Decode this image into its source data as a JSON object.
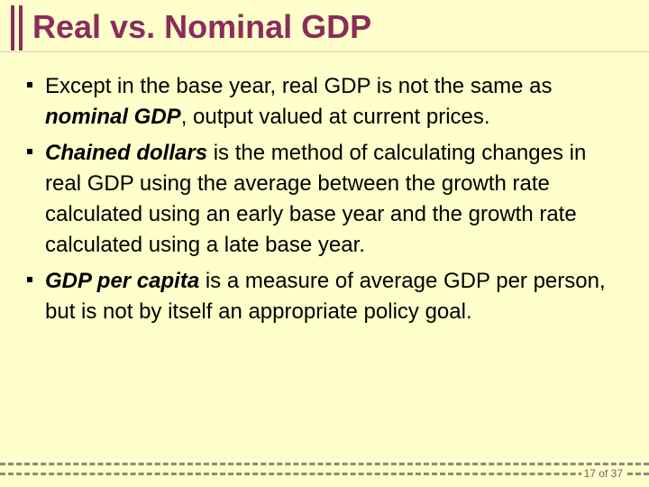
{
  "slide": {
    "title": "Real vs. Nominal GDP",
    "page_number": "17 of 37"
  },
  "bullets": [
    {
      "before": "Except in the base year, real GDP is not the same as ",
      "term": "nominal GDP",
      "after": ", output valued at current prices."
    },
    {
      "before": "",
      "term": "Chained dollars",
      "after": " is the method of calculating changes in real GDP using the average between the growth rate calculated using an early base year and the growth rate calculated using a late base year."
    },
    {
      "before": "",
      "term": "GDP per capita",
      "after": " is a measure of average GDP per person, but is not by itself an appropriate policy goal."
    }
  ],
  "colors": {
    "background": "#ffffcc",
    "accent": "#8b2c5a"
  }
}
